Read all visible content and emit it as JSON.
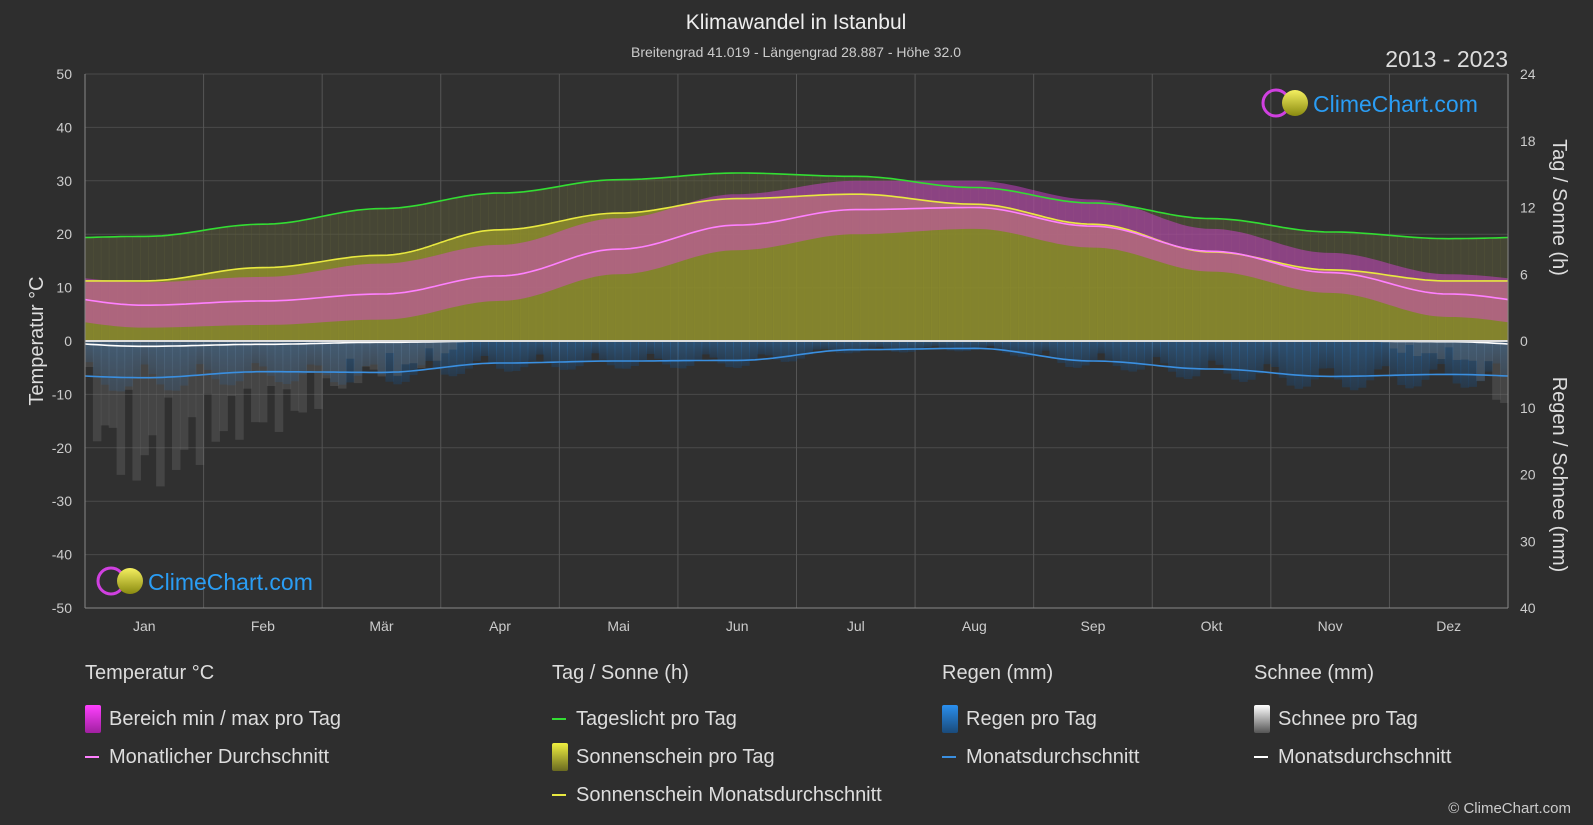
{
  "title": "Klimawandel in Istanbul",
  "subtitle": "Breitengrad 41.019 - Längengrad 28.887 - Höhe 32.0",
  "year_range": "2013 - 2023",
  "brand": "ClimeChart.com",
  "copyright": "© ClimeChart.com",
  "colors": {
    "background": "#2e2e2e",
    "temp_range": "#e040e0",
    "temp_avg": "#ff80ff",
    "daylight": "#33dd33",
    "sunshine_fill": "#9a9a2a",
    "sunshine_avg": "#e8e840",
    "rain": "#2a7fd4",
    "rain_avg": "#3a8fe0",
    "snow": "#bbbbbb",
    "snow_avg": "#ffffff",
    "brand_text": "#2a9df4"
  },
  "chart_data": {
    "type": "line",
    "categories": [
      "Jan",
      "Feb",
      "Mär",
      "Apr",
      "Mai",
      "Jun",
      "Jul",
      "Aug",
      "Sep",
      "Okt",
      "Nov",
      "Dez"
    ],
    "left_axis": {
      "label": "Temperatur °C",
      "min": -50,
      "max": 50,
      "ticks": [
        50,
        40,
        30,
        20,
        10,
        0,
        -10,
        -20,
        -30,
        -40,
        -50
      ]
    },
    "right_axis_top": {
      "label": "Tag / Sonne (h)",
      "min": 0,
      "max": 24,
      "ticks": [
        24,
        18,
        12,
        6,
        0
      ]
    },
    "right_axis_bottom": {
      "label": "Regen / Schnee (mm)",
      "min": 0,
      "max": 40,
      "ticks": [
        0,
        10,
        20,
        30,
        40
      ]
    },
    "grid": true,
    "series": [
      {
        "name": "Tageslicht pro Tag",
        "axis": "hours",
        "values": [
          9.4,
          10.5,
          11.9,
          13.3,
          14.5,
          15.1,
          14.8,
          13.8,
          12.4,
          11.0,
          9.8,
          9.2
        ]
      },
      {
        "name": "Sonnenschein Monatsdurchschnitt",
        "axis": "hours",
        "values": [
          5.4,
          6.6,
          7.7,
          10.0,
          11.5,
          12.8,
          13.2,
          12.3,
          10.5,
          8.0,
          6.4,
          5.4
        ]
      },
      {
        "name": "Monatlicher Durchschnitt",
        "axis": "temp",
        "values": [
          6.7,
          7.5,
          8.8,
          12.2,
          17.2,
          21.7,
          24.6,
          25.0,
          21.5,
          16.8,
          12.8,
          8.8
        ]
      },
      {
        "name": "Regen Monatsdurchschnitt",
        "axis": "mm",
        "values": [
          5.5,
          4.6,
          4.7,
          3.3,
          3.0,
          2.9,
          1.3,
          1.1,
          3.0,
          4.2,
          5.3,
          5.0
        ]
      },
      {
        "name": "Schnee Monatsdurchschnitt",
        "axis": "mm",
        "values": [
          0.8,
          0.5,
          0.2,
          0.0,
          0.0,
          0.0,
          0.0,
          0.0,
          0.0,
          0.0,
          0.0,
          0.1
        ]
      }
    ],
    "temp_range_band": {
      "name": "Bereich min / max pro Tag",
      "min": [
        2.5,
        3.0,
        4.0,
        7.5,
        12.5,
        17.0,
        20.0,
        21.0,
        17.5,
        13.0,
        9.0,
        4.5
      ],
      "max": [
        11.0,
        12.0,
        14.5,
        18.0,
        23.0,
        27.5,
        30.0,
        30.0,
        26.5,
        21.0,
        16.5,
        12.5
      ]
    }
  },
  "legend": {
    "groups": [
      {
        "title": "Temperatur °C",
        "items": [
          {
            "label": "Bereich min / max pro Tag",
            "swatch": "box"
          },
          {
            "label": "Monatlicher Durchschnitt",
            "swatch": "line"
          }
        ]
      },
      {
        "title": "Tag / Sonne (h)",
        "items": [
          {
            "label": "Tageslicht pro Tag",
            "swatch": "line"
          },
          {
            "label": "Sonnenschein pro Tag",
            "swatch": "box"
          },
          {
            "label": "Sonnenschein Monatsdurchschnitt",
            "swatch": "line"
          }
        ]
      },
      {
        "title": "Regen (mm)",
        "items": [
          {
            "label": "Regen pro Tag",
            "swatch": "box"
          },
          {
            "label": "Monatsdurchschnitt",
            "swatch": "line"
          }
        ]
      },
      {
        "title": "Schnee (mm)",
        "items": [
          {
            "label": "Schnee pro Tag",
            "swatch": "box"
          },
          {
            "label": "Monatsdurchschnitt",
            "swatch": "line"
          }
        ]
      }
    ]
  }
}
